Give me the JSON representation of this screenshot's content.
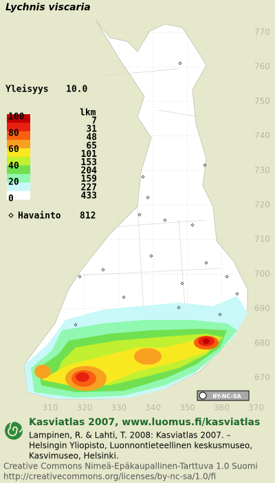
{
  "title": "Lychnis viscaria",
  "frequency": {
    "label": "Yleisyys",
    "value": "10.0"
  },
  "legend": {
    "scale_labels": [
      100,
      80,
      60,
      40,
      20,
      0
    ],
    "count_header": "lkm",
    "counts": [
      7,
      31,
      48,
      65,
      101,
      153,
      204,
      159,
      227,
      433
    ],
    "colors": [
      "#c00000",
      "#e82010",
      "#f86010",
      "#f8a020",
      "#f8e820",
      "#c0f030",
      "#70e050",
      "#90f8b0",
      "#c8f8f8",
      "#ffffff"
    ]
  },
  "observations": {
    "label": "Havainto",
    "count": 812
  },
  "grid": {
    "y_labels": [
      770,
      760,
      750,
      740,
      730,
      720,
      710,
      700,
      690,
      680,
      670
    ],
    "x_labels": [
      310,
      320,
      330,
      340,
      350,
      360,
      370
    ]
  },
  "license_badge": "BY-NC-SA",
  "footer": {
    "site": "Kasviatlas 2007, www.luomus.fi/kasviatlas",
    "citation": [
      "Lampinen, R. & Lahti, T. 2008: Kasviatlas 2007. –",
      "Helsingin Yliopisto, Luonnontieteellinen keskusmuseo,",
      "Kasvimuseo, Helsinki."
    ],
    "license": [
      "Creative Commons Nimeä-Epäkaupallinen-Tarttuva 1.0 Suomi",
      "http://creativecommons.org/licenses/by-nc-sa/1.0/fi"
    ]
  }
}
